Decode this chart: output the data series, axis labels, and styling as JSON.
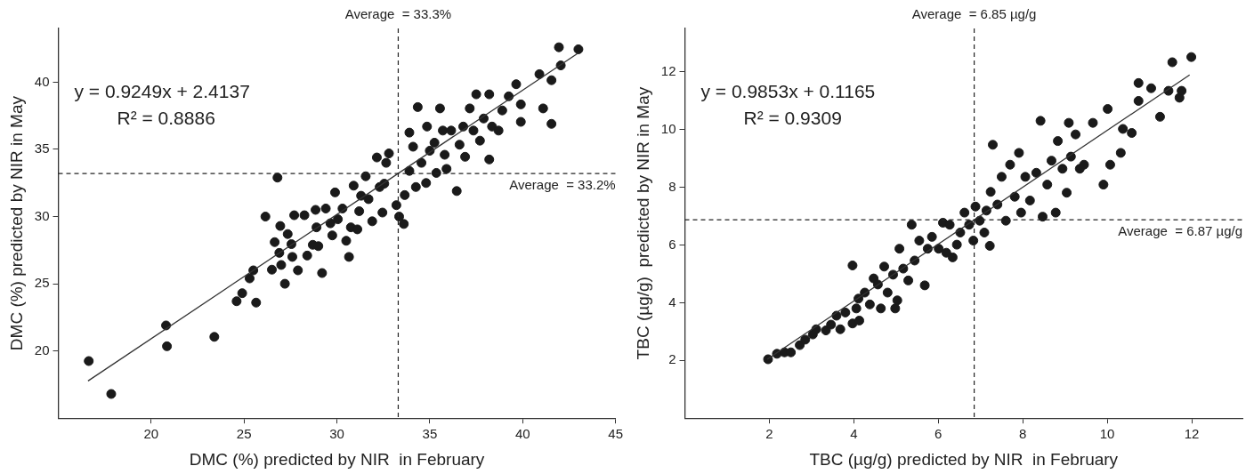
{
  "chart_data": [
    {
      "type": "scatter",
      "xlabel": "DMC (%) predicted by NIR  in February",
      "ylabel": "DMC (%) predicted by NIR in May",
      "xlim": [
        15,
        45
      ],
      "ylim": [
        15,
        44
      ],
      "xticks": [
        20,
        25,
        30,
        35,
        40,
        45
      ],
      "yticks": [
        20,
        25,
        30,
        35,
        40
      ],
      "grid": false,
      "legend": false,
      "annotations": [
        "y = 0.9249x + 2.4137",
        "R² = 0.8886"
      ],
      "ref_lines": [
        {
          "axis": "x",
          "value": 33.3,
          "label": "Average  = 33.3%",
          "line_style": "dashed"
        },
        {
          "axis": "y",
          "value": 33.2,
          "label": "Average  = 33.2%",
          "line_style": "dashed"
        }
      ],
      "series": [
        {
          "type": "scatter",
          "marker": "circle",
          "color": "#1a1a1a",
          "x": [
            16.64,
            17.85,
            20.8,
            20.85,
            23.4,
            24.6,
            24.9,
            25.3,
            25.5,
            25.65,
            26.15,
            26.5,
            26.8,
            26.65,
            26.9,
            26.95,
            27,
            27.2,
            27.35,
            27.55,
            27.6,
            27.9,
            27.7,
            28.25,
            28.4,
            28.7,
            28.85,
            28.9,
            29,
            29.2,
            29.4,
            29.65,
            29.75,
            29.9,
            30.05,
            30.3,
            30.5,
            30.65,
            30.75,
            30.9,
            31.1,
            31.2,
            31.3,
            31.55,
            31.7,
            31.9,
            32.15,
            32.3,
            32.45,
            32.55,
            32.8,
            32.65,
            33.2,
            33.35,
            33.6,
            33.65,
            33.9,
            33.9,
            34.1,
            34.35,
            34.25,
            34.55,
            34.8,
            34.85,
            35.0,
            35.25,
            35.35,
            35.55,
            35.7,
            35.8,
            35.9,
            36.15,
            36.45,
            36.6,
            36.8,
            36.9,
            37.15,
            37.35,
            37.5,
            37.7,
            37.9,
            38.2,
            38.2,
            38.35,
            38.7,
            38.9,
            39.25,
            39.65,
            39.9,
            39.9,
            40.9,
            41.1,
            41.55,
            41.55,
            41.95,
            42.05,
            43.0
          ],
          "values": [
            19.25,
            16.8,
            21.9,
            20.35,
            21.05,
            23.7,
            24.3,
            25.4,
            26,
            23.6,
            30,
            26.05,
            32.9,
            28.1,
            27.3,
            29.3,
            26.4,
            25,
            28.7,
            27.95,
            27,
            26,
            30.1,
            30.1,
            27.1,
            27.9,
            30.5,
            29.2,
            27.8,
            25.8,
            30.6,
            29.5,
            28.6,
            31.8,
            29.8,
            30.6,
            28.2,
            27,
            29.2,
            32.3,
            29.05,
            30.4,
            31.55,
            33,
            31.3,
            29.65,
            34.4,
            32.2,
            30.3,
            32.45,
            34.7,
            34,
            30.85,
            30,
            29.45,
            31.6,
            33.4,
            36.25,
            35.2,
            38.15,
            32.2,
            34,
            32.5,
            36.7,
            34.9,
            35.5,
            33.25,
            38.05,
            36.4,
            34.6,
            33.55,
            36.4,
            31.9,
            35.35,
            36.7,
            34.45,
            38.05,
            36.4,
            39.1,
            35.65,
            37.3,
            39.1,
            34.25,
            36.7,
            36.4,
            37.9,
            38.95,
            39.85,
            38.35,
            37.05,
            40.6,
            38.05,
            40.15,
            36.9,
            42.6,
            41.25,
            42.45
          ]
        },
        {
          "type": "line",
          "marker": "none",
          "line_style": "solid",
          "color": "#333333",
          "x": [
            16.6,
            43.0
          ],
          "values": [
            17.77,
            42.18
          ]
        }
      ]
    },
    {
      "type": "scatter",
      "xlabel": "TBC (µg/g) predicted by NIR  in February",
      "ylabel": "TBC (µg/g)  predicted by NIR in May",
      "xlim": [
        0,
        13.2
      ],
      "ylim": [
        0,
        13.5
      ],
      "xticks": [
        2,
        4,
        6,
        8,
        10,
        12
      ],
      "yticks": [
        2,
        4,
        6,
        8,
        10,
        12
      ],
      "grid": false,
      "legend": false,
      "annotations": [
        "y = 0.9853x + 0.1165",
        "R² = 0.9309"
      ],
      "ref_lines": [
        {
          "axis": "x",
          "value": 6.85,
          "label": "Average  = 6.85 µg/g",
          "line_style": "dashed"
        },
        {
          "axis": "y",
          "value": 6.87,
          "label": "Average  = 6.87 µg/g",
          "line_style": "dashed"
        }
      ],
      "series": [
        {
          "type": "scatter",
          "marker": "circle",
          "color": "#1a1a1a",
          "x": [
            1.97,
            2.18,
            2.36,
            2.51,
            2.72,
            2.85,
            3.03,
            3.11,
            3.34,
            3.46,
            3.68,
            3.59,
            3.8,
            3.97,
            3.97,
            4.06,
            4.11,
            4.13,
            4.26,
            4.38,
            4.47,
            4.57,
            4.64,
            4.72,
            4.8,
            4.93,
            4.98,
            5.03,
            5.08,
            5.17,
            5.29,
            5.37,
            5.44,
            5.55,
            5.68,
            5.75,
            5.85,
            6.01,
            6.11,
            6.19,
            6.27,
            6.34,
            6.44,
            6.52,
            6.62,
            6.73,
            6.83,
            6.88,
            6.98,
            7.09,
            7.22,
            7.14,
            7.24,
            7.29,
            7.4,
            7.5,
            7.6,
            7.7,
            7.81,
            7.91,
            7.96,
            8.06,
            8.17,
            8.32,
            8.42,
            8.47,
            8.58,
            8.68,
            8.78,
            8.83,
            8.94,
            9.04,
            9.09,
            9.14,
            9.25,
            9.35,
            9.45,
            9.66,
            9.91,
            10.01,
            10.07,
            10.32,
            10.37,
            10.58,
            10.74,
            10.74,
            11.04,
            11.25,
            11.45,
            11.54,
            11.71,
            11.76,
            11.99
          ],
          "values": [
            2.04,
            2.23,
            2.28,
            2.28,
            2.53,
            2.72,
            2.9,
            3.08,
            3.04,
            3.24,
            3.08,
            3.55,
            3.66,
            3.28,
            5.29,
            3.8,
            4.14,
            3.38,
            4.35,
            3.94,
            4.84,
            4.63,
            3.8,
            5.25,
            4.35,
            4.97,
            3.8,
            4.08,
            5.87,
            5.18,
            4.77,
            6.7,
            5.46,
            6.15,
            4.6,
            5.87,
            6.28,
            5.87,
            6.77,
            5.73,
            6.7,
            5.57,
            6.01,
            6.43,
            7.12,
            6.7,
            6.15,
            7.33,
            6.84,
            6.43,
            5.97,
            7.19,
            7.84,
            9.47,
            7.4,
            8.36,
            6.84,
            8.78,
            7.67,
            9.19,
            7.12,
            8.36,
            7.54,
            8.5,
            10.3,
            6.98,
            8.09,
            8.92,
            7.12,
            9.6,
            8.64,
            7.81,
            10.23,
            9.06,
            9.83,
            8.64,
            8.78,
            10.23,
            8.09,
            10.71,
            8.78,
            9.19,
            10.02,
            9.88,
            10.99,
            11.61,
            11.43,
            10.44,
            11.34,
            12.33,
            11.1,
            11.34,
            12.51
          ]
        },
        {
          "type": "line",
          "marker": "none",
          "line_style": "solid",
          "color": "#333333",
          "x": [
            1.95,
            11.95
          ],
          "values": [
            2.04,
            11.89
          ]
        }
      ]
    }
  ]
}
